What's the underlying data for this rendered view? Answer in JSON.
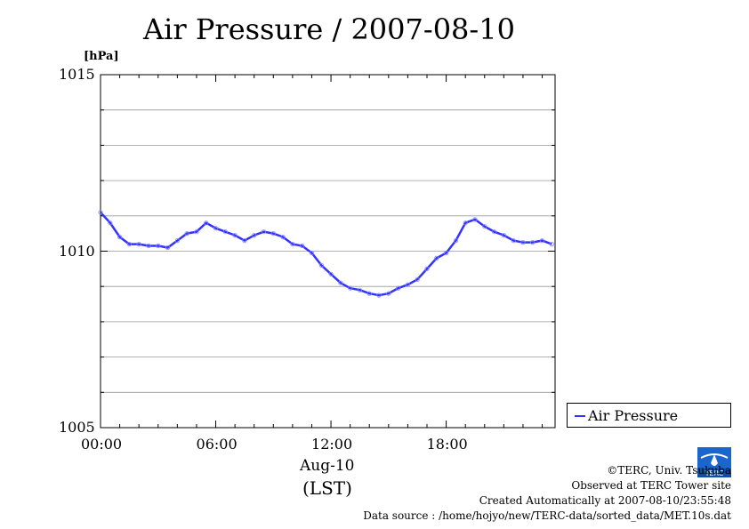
{
  "title": "Air Pressure / 2007-08-10",
  "unit_label": "[hPa]",
  "y_ticks": [
    "1015",
    "1010",
    "1005"
  ],
  "x_ticks": [
    "00:00",
    "06:00",
    "12:00",
    "18:00"
  ],
  "date_label": "Aug-10",
  "tz_label": "(LST)",
  "legend_label": "Air Pressure",
  "credits": {
    "line1": "©TERC, Univ. Tsukuba",
    "line2": "Observed at TERC Tower site",
    "line3": "Created Automatically at 2007-08-10/23:55:48",
    "line4": "Data source : /home/hojyo/new/TERC-data/sorted_data/MET.10s.dat"
  },
  "logo_text": "TERC",
  "colors": {
    "series": "#3333ff",
    "marker": "#8888ff",
    "grid": "#999999"
  },
  "chart_data": {
    "type": "line",
    "title": "Air Pressure / 2007-08-10",
    "xlabel": "Aug-10 (LST)",
    "ylabel": "[hPa]",
    "x_unit": "hour",
    "xlim": [
      0,
      23.67
    ],
    "ylim": [
      1005,
      1015
    ],
    "grid": true,
    "legend_position": "right",
    "series": [
      {
        "name": "Air Pressure",
        "x": [
          0,
          0.5,
          1.0,
          1.5,
          2.0,
          2.5,
          3.0,
          3.5,
          4.0,
          4.5,
          5.0,
          5.5,
          6.0,
          6.5,
          7.0,
          7.5,
          8.0,
          8.5,
          9.0,
          9.5,
          10.0,
          10.5,
          11.0,
          11.5,
          12.0,
          12.5,
          13.0,
          13.5,
          14.0,
          14.5,
          15.0,
          15.5,
          16.0,
          16.5,
          17.0,
          17.5,
          18.0,
          18.5,
          19.0,
          19.5,
          20.0,
          20.5,
          21.0,
          21.5,
          22.0,
          22.5,
          23.0,
          23.5
        ],
        "values": [
          1011.1,
          1010.8,
          1010.4,
          1010.2,
          1010.2,
          1010.15,
          1010.15,
          1010.1,
          1010.3,
          1010.5,
          1010.55,
          1010.8,
          1010.65,
          1010.55,
          1010.45,
          1010.3,
          1010.45,
          1010.55,
          1010.5,
          1010.4,
          1010.2,
          1010.15,
          1009.95,
          1009.6,
          1009.35,
          1009.1,
          1008.95,
          1008.9,
          1008.8,
          1008.75,
          1008.8,
          1008.95,
          1009.05,
          1009.2,
          1009.5,
          1009.8,
          1009.95,
          1010.3,
          1010.8,
          1010.9,
          1010.7,
          1010.55,
          1010.45,
          1010.3,
          1010.25,
          1010.25,
          1010.3,
          1010.2
        ]
      }
    ]
  }
}
